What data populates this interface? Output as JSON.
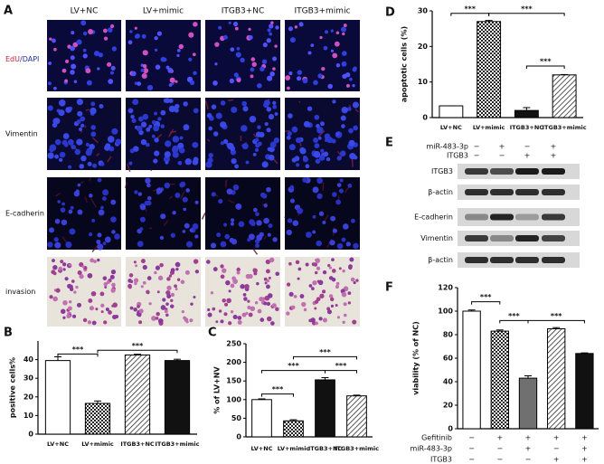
{
  "figure": {
    "panel_a": {
      "label": "A",
      "columns": [
        "LV+NC",
        "LV+mimic",
        "ITGB3+NC",
        "ITGB3+mimic"
      ],
      "edu_label": [
        "EdU",
        "/DAPI"
      ],
      "rows": [
        "Vimentin",
        "E-cadherin",
        "invasion"
      ]
    },
    "panel_e": {
      "label": "E",
      "conditions": [
        {
          "name": "miR-483-3p",
          "values": [
            "−",
            "+",
            "−",
            "+"
          ]
        },
        {
          "name": "ITGB3",
          "values": [
            "−",
            "−",
            "+",
            "+"
          ]
        }
      ],
      "blots": [
        "ITGB3",
        "β-actin",
        "E-cadherin",
        "Vimentin",
        "β-actin"
      ]
    }
  },
  "chart_data": [
    {
      "type": "bar",
      "label": "B",
      "ylabel": "positive cells%",
      "categories": [
        "LV+NC",
        "LV+mimic",
        "ITGB3+NC",
        "ITGB3+mimic"
      ],
      "values": [
        39.5,
        16.5,
        42.5,
        39.5
      ],
      "errors": [
        2,
        1.3,
        0.4,
        0.7
      ],
      "patterns": [
        "white",
        "checker",
        "hatch",
        "black"
      ],
      "ylim": [
        0,
        50
      ],
      "yticks": [
        0,
        10,
        20,
        30,
        40
      ],
      "significance": [
        {
          "pair": [
            0,
            1
          ],
          "y": 43,
          "label": "***"
        },
        {
          "pair": [
            1,
            3
          ],
          "y": 45,
          "label": "***"
        }
      ]
    },
    {
      "type": "bar",
      "label": "C",
      "ylabel": "% of LV+NV",
      "categories": [
        "LV+NC",
        "LV+mimic",
        "ITGB3+NC",
        "ITGB3+mimic"
      ],
      "values": [
        100,
        43,
        153,
        110
      ],
      "errors": [
        2,
        3,
        6,
        2
      ],
      "patterns": [
        "white",
        "checker",
        "black",
        "hatch"
      ],
      "ylim": [
        0,
        250
      ],
      "yticks": [
        0,
        50,
        100,
        150,
        200,
        250
      ],
      "significance": [
        {
          "pair": [
            0,
            1
          ],
          "y": 115,
          "label": "***"
        },
        {
          "pair": [
            0,
            2
          ],
          "y": 178,
          "label": "***"
        },
        {
          "pair": [
            2,
            3
          ],
          "y": 178,
          "label": "***"
        },
        {
          "pair": [
            1,
            3
          ],
          "y": 215,
          "label": "***"
        }
      ]
    },
    {
      "type": "bar",
      "label": "D",
      "ylabel": "apoptotic cells (%)",
      "categories": [
        "LV+NC",
        "LV+mimic",
        "ITGB3+NC",
        "ITGB3+mimic"
      ],
      "values": [
        3.3,
        27,
        2,
        12
      ],
      "errors": [
        0,
        0.3,
        0.8,
        0.1
      ],
      "patterns": [
        "white",
        "checker",
        "black",
        "hatch"
      ],
      "ylim": [
        0,
        30
      ],
      "yticks": [
        0,
        10,
        20,
        30
      ],
      "significance": [
        {
          "pair": [
            0,
            1
          ],
          "y": 29.3,
          "label": "***"
        },
        {
          "pair": [
            1,
            3
          ],
          "y": 29.3,
          "label": "***"
        },
        {
          "pair": [
            2,
            3
          ],
          "y": 14.5,
          "label": "***"
        }
      ]
    },
    {
      "type": "bar",
      "label": "F",
      "ylabel": "viability (% of NC)",
      "categories": [
        null,
        null,
        null,
        null,
        null
      ],
      "values": [
        100,
        83,
        43,
        85,
        64
      ],
      "errors": [
        1,
        1,
        2,
        1,
        0.5
      ],
      "patterns": [
        "white",
        "checker",
        "gray",
        "hatch",
        "black"
      ],
      "ylim": [
        0,
        120
      ],
      "yticks": [
        0,
        20,
        40,
        60,
        80,
        100,
        120
      ],
      "significance": [
        {
          "pair": [
            0,
            1
          ],
          "y": 108,
          "label": "***"
        },
        {
          "pair": [
            1,
            2
          ],
          "y": 92,
          "label": "***"
        },
        {
          "pair": [
            2,
            4
          ],
          "y": 92,
          "label": "***"
        }
      ],
      "treatments": [
        {
          "name": "Gefitinib",
          "values": [
            "−",
            "+",
            "+",
            "+",
            "+"
          ]
        },
        {
          "name": "miR-483-3p",
          "values": [
            "−",
            "−",
            "+",
            "−",
            "+"
          ]
        },
        {
          "name": "ITGB3",
          "values": [
            "−",
            "−",
            "−",
            "+",
            "+"
          ]
        }
      ]
    }
  ]
}
